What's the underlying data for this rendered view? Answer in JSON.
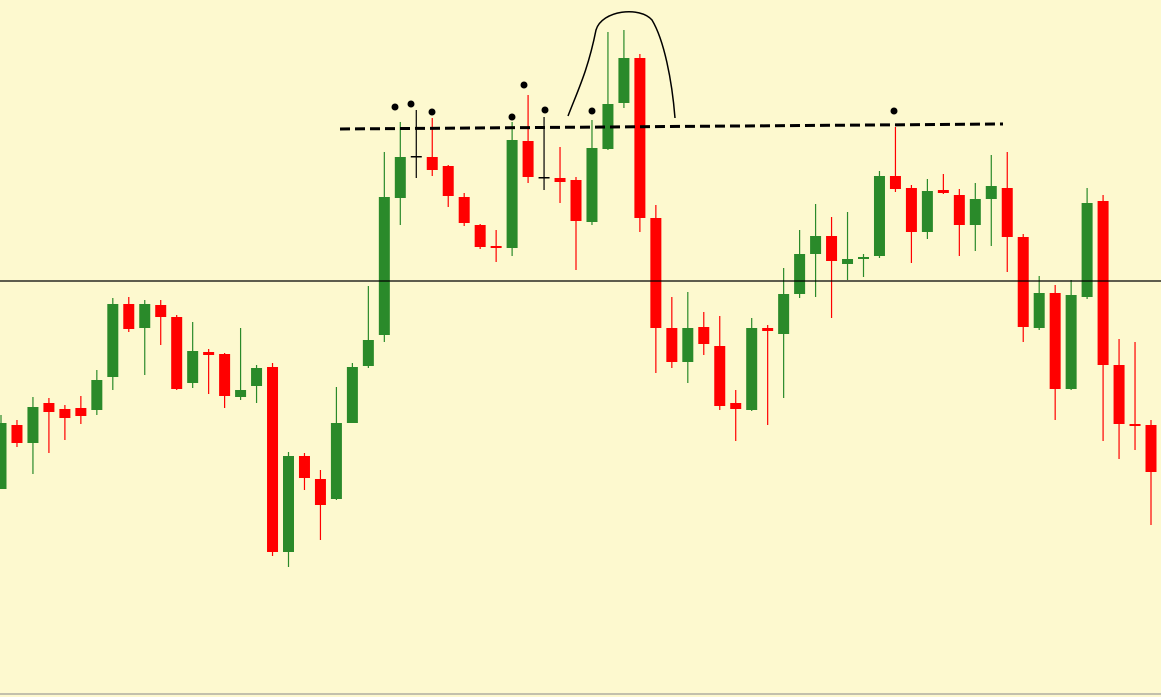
{
  "chart_data": {
    "type": "candlestick",
    "open": [
      208,
      272,
      254,
      294,
      288,
      289,
      287,
      320,
      393,
      369,
      392,
      380,
      314,
      345,
      343,
      300,
      311,
      330,
      145,
      241,
      218,
      198,
      274,
      331,
      362,
      499,
      541,
      540,
      531,
      500,
      472,
      451,
      449,
      556,
      520,
      519,
      517,
      475,
      548,
      594,
      639,
      479,
      369,
      335,
      370,
      351,
      294,
      287,
      369,
      363,
      403,
      443,
      461,
      433,
      438,
      441,
      521,
      509,
      465,
      507,
      502,
      472,
      498,
      509,
      460,
      369,
      404,
      308,
      400,
      496,
      332,
      273,
      272
    ],
    "high": [
      282,
      277,
      300,
      299,
      292,
      301,
      327,
      399,
      400,
      397,
      397,
      382,
      375,
      348,
      344,
      369,
      332,
      334,
      245,
      244,
      227,
      310,
      334,
      411,
      545,
      575,
      587,
      579,
      532,
      504,
      473,
      467,
      575,
      602,
      580,
      550,
      520,
      577,
      665,
      667,
      643,
      492,
      400,
      405,
      385,
      381,
      307,
      379,
      372,
      429,
      467,
      493,
      480,
      485,
      443,
      526,
      570,
      512,
      518,
      523,
      508,
      514,
      542,
      545,
      463,
      421,
      412,
      417,
      509,
      502,
      358,
      355,
      277
    ],
    "low": [
      208,
      250,
      223,
      244,
      257,
      273,
      282,
      307,
      365,
      322,
      352,
      307,
      309,
      303,
      289,
      297,
      294,
      141,
      130,
      207,
      157,
      197,
      274,
      329,
      355,
      472,
      519,
      521,
      490,
      471,
      448,
      435,
      441,
      514,
      507,
      494,
      427,
      472,
      547,
      589,
      465,
      324,
      329,
      314,
      342,
      287,
      256,
      286,
      272,
      299,
      399,
      400,
      379,
      417,
      420,
      439,
      505,
      434,
      458,
      503,
      441,
      446,
      451,
      425,
      355,
      367,
      277,
      307,
      398,
      256,
      238,
      247,
      172
    ],
    "close": [
      274,
      254,
      290,
      285,
      279,
      281,
      317,
      393,
      368,
      393,
      380,
      308,
      346,
      342,
      301,
      307,
      329,
      145,
      241,
      219,
      192,
      274,
      330,
      357,
      500,
      540,
      541,
      527,
      501,
      474,
      450,
      449,
      557,
      520,
      520,
      515,
      476,
      549,
      593,
      639,
      479,
      369,
      335,
      369,
      353,
      291,
      288,
      369,
      366,
      403,
      443,
      461,
      436,
      438,
      440,
      521,
      508,
      465,
      506,
      504,
      472,
      498,
      511,
      460,
      370,
      404,
      308,
      402,
      494,
      332,
      273,
      271,
      225
    ],
    "up_color": "#2a8a2a",
    "down_color": "#ff0000",
    "doji_color": "#000000",
    "ylim": [
      0,
      697
    ]
  }
}
